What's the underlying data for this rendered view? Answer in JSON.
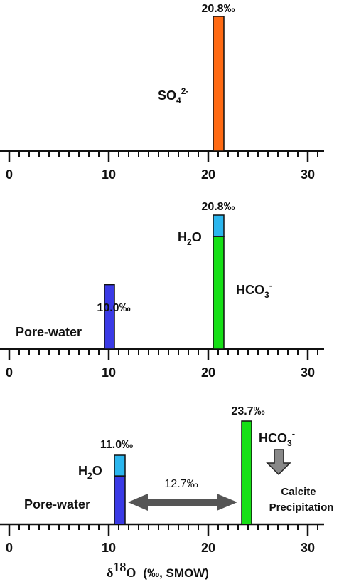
{
  "chart_data": [
    {
      "type": "bar",
      "xlim": [
        0,
        30
      ],
      "ticks": [
        "0",
        "10",
        "20",
        "30"
      ],
      "bars": [
        {
          "x": 21,
          "segments": [
            {
              "value": 20.8,
              "color": "#ff6a13"
            }
          ],
          "value_label": "20.8‰",
          "label_main": "SO",
          "label_sub": "4",
          "label_sup": "2-"
        }
      ]
    },
    {
      "type": "bar",
      "xlim": [
        0,
        30
      ],
      "ticks": [
        "0",
        "10",
        "20",
        "30"
      ],
      "bars": [
        {
          "x": 10,
          "segments": [
            {
              "value": 10.0,
              "color": "#3a3ae6"
            }
          ],
          "value_label": "10.0‰",
          "label": "Pore-water"
        },
        {
          "x": 21,
          "segments": [
            {
              "value": 17.5,
              "color": "#16e016"
            },
            {
              "value": 3.3,
              "color": "#2bb6ee"
            }
          ],
          "value_label": "20.8‰",
          "label_h2o_main": "H",
          "label_h2o_sub": "2",
          "label_h2o_tail": "O",
          "label_hco3_main": "HCO",
          "label_hco3_sub": "3",
          "label_hco3_sup": "-"
        }
      ]
    },
    {
      "type": "bar",
      "xlim": [
        0,
        30
      ],
      "ticks": [
        "0",
        "10",
        "20",
        "30"
      ],
      "bars": [
        {
          "x": 11,
          "segments": [
            {
              "value": 7.7,
              "color": "#3a3ae6"
            },
            {
              "value": 3.3,
              "color": "#2bb6ee"
            }
          ],
          "value_label": "11.0‰",
          "label_h2o_main": "H",
          "label_h2o_sub": "2",
          "label_h2o_tail": "O",
          "label_pore": "Pore-water"
        },
        {
          "x": 24,
          "segments": [
            {
              "value": 23.7,
              "color": "#16e016"
            }
          ],
          "value_label": "23.7‰",
          "label_hco3_main": "HCO",
          "label_hco3_sub": "3",
          "label_hco3_sup": "-"
        }
      ],
      "difference_label": "12.7‰",
      "arrow_color": "#555555",
      "note_line1": "Calcite",
      "note_line2": "Precipitation",
      "xlabel_delta": "δ",
      "xlabel_sup": "18",
      "xlabel_O": "O",
      "xlabel_rest": "(‰, SMOW)"
    }
  ]
}
